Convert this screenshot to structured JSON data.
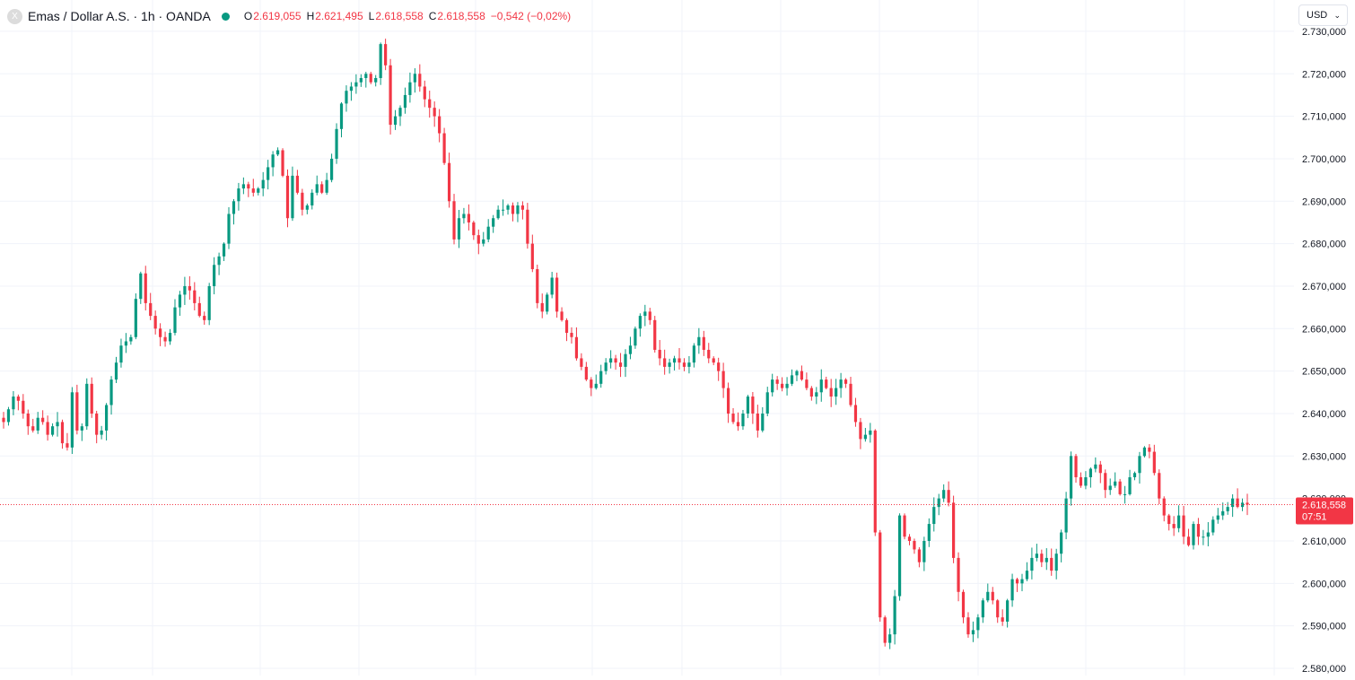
{
  "symbol": {
    "logo_letter": "X",
    "title": "Emas / Dollar A.S. · 1h · OANDA",
    "status_icon": "green-dot-icon"
  },
  "ohlc": {
    "o_key": "O",
    "o": "2.619,055",
    "h_key": "H",
    "h": "2.621,495",
    "l_key": "L",
    "l": "2.618,558",
    "c_key": "C",
    "c": "2.618,558",
    "change": "−0,542 (−0,02%)"
  },
  "currency": {
    "label": "USD",
    "icon": "chevron-down-icon"
  },
  "colors": {
    "up": "#089981",
    "down": "#f23645",
    "grid": "#f0f3fa",
    "last_price_line": "#f23645",
    "last_price_bg": "#f23645"
  },
  "last_price": {
    "value": 2618.558,
    "label": "2.618,558",
    "countdown": "07:51"
  },
  "chart_data": {
    "type": "candlestick",
    "interval": "1h",
    "grid": true,
    "price_axis_position": "right",
    "ylim": [
      2580,
      2734
    ],
    "y_ticks": [
      {
        "value": 2580,
        "label": "2.580,000"
      },
      {
        "value": 2590,
        "label": "2.590,000"
      },
      {
        "value": 2600,
        "label": "2.600,000"
      },
      {
        "value": 2610,
        "label": "2.610,000"
      },
      {
        "value": 2620,
        "label": "2.620,000"
      },
      {
        "value": 2630,
        "label": "2.630,000"
      },
      {
        "value": 2640,
        "label": "2.640,000"
      },
      {
        "value": 2650,
        "label": "2.650,000"
      },
      {
        "value": 2660,
        "label": "2.660,000"
      },
      {
        "value": 2670,
        "label": "2.670,000"
      },
      {
        "value": 2680,
        "label": "2.680,000"
      },
      {
        "value": 2690,
        "label": "2.690,000"
      },
      {
        "value": 2700,
        "label": "2.700,000"
      },
      {
        "value": 2710,
        "label": "2.710,000"
      },
      {
        "value": 2720,
        "label": "2.720,000"
      },
      {
        "value": 2730,
        "label": "2.730,000"
      }
    ],
    "closes": [
      2638,
      2641,
      2644,
      2643,
      2640,
      2637,
      2636,
      2639,
      2638,
      2635,
      2637,
      2638,
      2633,
      2632,
      2645,
      2636,
      2637,
      2647,
      2640,
      2635,
      2636,
      2642,
      2648,
      2652,
      2656,
      2657,
      2658,
      2667,
      2673,
      2666,
      2663,
      2660,
      2658,
      2657,
      2659,
      2665,
      2668,
      2670,
      2669,
      2666,
      2663,
      2662,
      2670,
      2675,
      2677,
      2680,
      2687,
      2690,
      2693,
      2694,
      2693,
      2692,
      2693,
      2695,
      2698,
      2701,
      2702,
      2696,
      2686,
      2696,
      2692,
      2688,
      2689,
      2692,
      2694,
      2692,
      2695,
      2700,
      2707,
      2713,
      2716,
      2717,
      2718,
      2719,
      2720,
      2718,
      2719,
      2727,
      2722,
      2708,
      2710,
      2712,
      2715,
      2718,
      2720,
      2717,
      2714,
      2712,
      2710,
      2706,
      2699,
      2690,
      2681,
      2686,
      2687,
      2685,
      2682,
      2680,
      2681,
      2684,
      2686,
      2688,
      2688,
      2689,
      2687,
      2689,
      2688,
      2680,
      2674,
      2666,
      2664,
      2668,
      2672,
      2664,
      2662,
      2659,
      2658,
      2653,
      2651,
      2648,
      2646,
      2647,
      2650,
      2652,
      2653,
      2652,
      2651,
      2654,
      2656,
      2660,
      2663,
      2664,
      2662,
      2655,
      2653,
      2651,
      2652,
      2653,
      2652,
      2651,
      2652,
      2656,
      2658,
      2655,
      2653,
      2652,
      2650,
      2646,
      2640,
      2638,
      2637,
      2640,
      2644,
      2640,
      2636,
      2640,
      2645,
      2648,
      2647,
      2646,
      2647,
      2649,
      2650,
      2648,
      2646,
      2644,
      2645,
      2648,
      2646,
      2644,
      2646,
      2648,
      2647,
      2642,
      2638,
      2634,
      2635,
      2636,
      2612,
      2592,
      2586,
      2588,
      2597,
      2616,
      2611,
      2610,
      2608,
      2605,
      2610,
      2614,
      2618,
      2620,
      2622,
      2619,
      2606,
      2598,
      2592,
      2588,
      2589,
      2592,
      2596,
      2598,
      2596,
      2592,
      2591,
      2596,
      2601,
      2600,
      2601,
      2603,
      2606,
      2607,
      2605,
      2606,
      2603,
      2607,
      2612,
      2620,
      2630,
      2625,
      2623,
      2625,
      2627,
      2628,
      2626,
      2622,
      2623,
      2624,
      2621,
      2621,
      2625,
      2626,
      2630,
      2632,
      2631,
      2626,
      2620,
      2616,
      2614,
      2613,
      2616,
      2611,
      2609,
      2614,
      2611,
      2611,
      2612,
      2615,
      2616,
      2617,
      2618,
      2620,
      2618,
      2619,
      2618.558
    ]
  }
}
